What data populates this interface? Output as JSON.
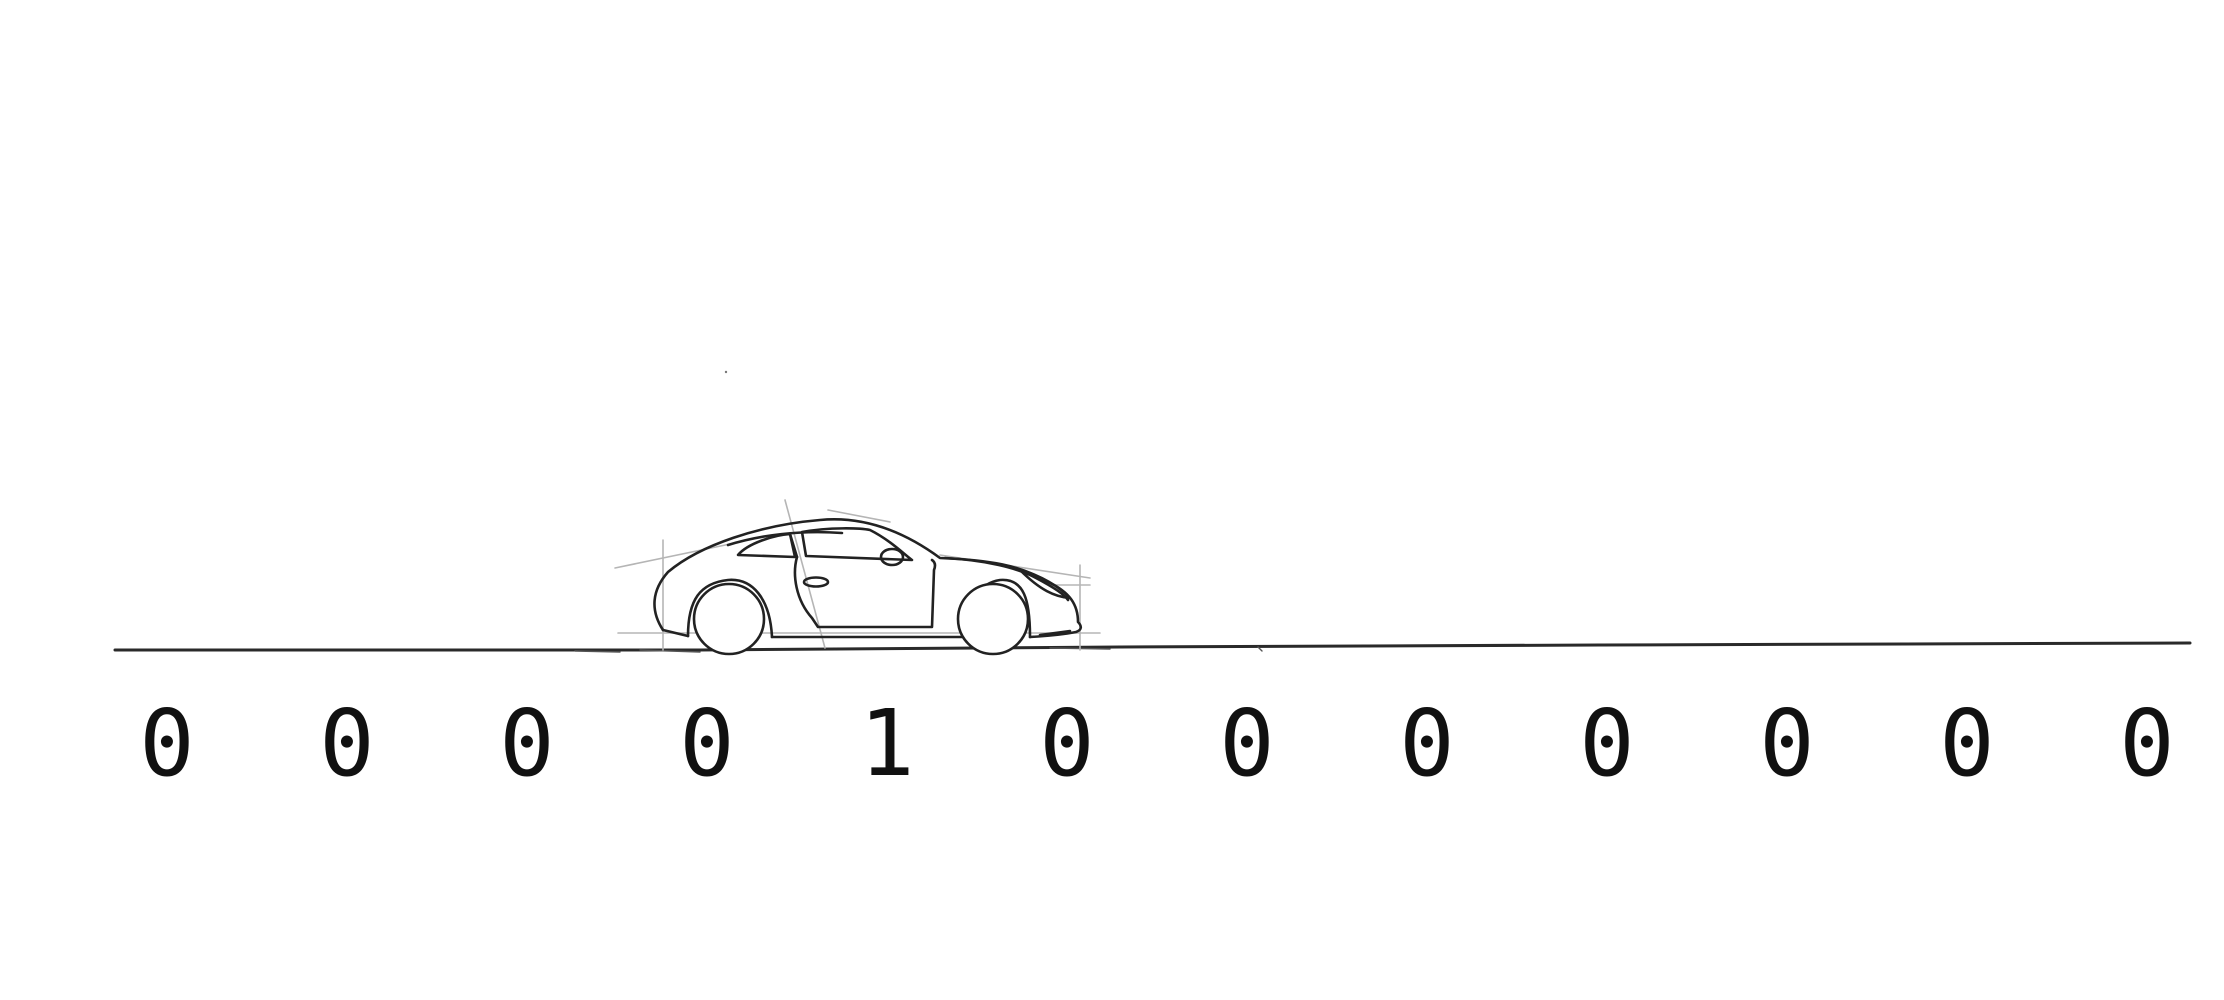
{
  "diagram": {
    "bits": [
      "0",
      "0",
      "0",
      "0",
      "1",
      "0",
      "0",
      "0",
      "0",
      "0",
      "0",
      "0"
    ],
    "active_index": 4,
    "road_color": "#2a2a2a",
    "ink_color": "#222222",
    "guide_color": "#b5b5b5",
    "icons": {
      "car": "sports-car-sketch-icon"
    }
  }
}
